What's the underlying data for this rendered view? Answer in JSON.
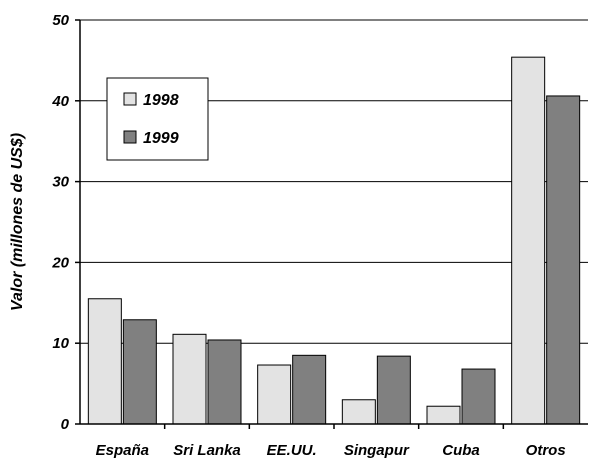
{
  "chart_data": {
    "type": "bar",
    "title": "",
    "xlabel": "",
    "ylabel": "Valor (millones de US$)",
    "ylim": [
      0,
      50
    ],
    "yticks": [
      0,
      10,
      20,
      30,
      40,
      50
    ],
    "grid": true,
    "legend_position": "top-left",
    "categories": [
      "España",
      "Sri Lanka",
      "EE.UU.",
      "Singapur",
      "Cuba",
      "Otros"
    ],
    "series": [
      {
        "name": "1998",
        "color": "#e3e3e3",
        "values": [
          15.5,
          11.1,
          7.3,
          3.0,
          2.2,
          45.4
        ]
      },
      {
        "name": "1999",
        "color": "#808080",
        "values": [
          12.9,
          10.4,
          8.5,
          8.4,
          6.8,
          40.6
        ]
      }
    ]
  }
}
